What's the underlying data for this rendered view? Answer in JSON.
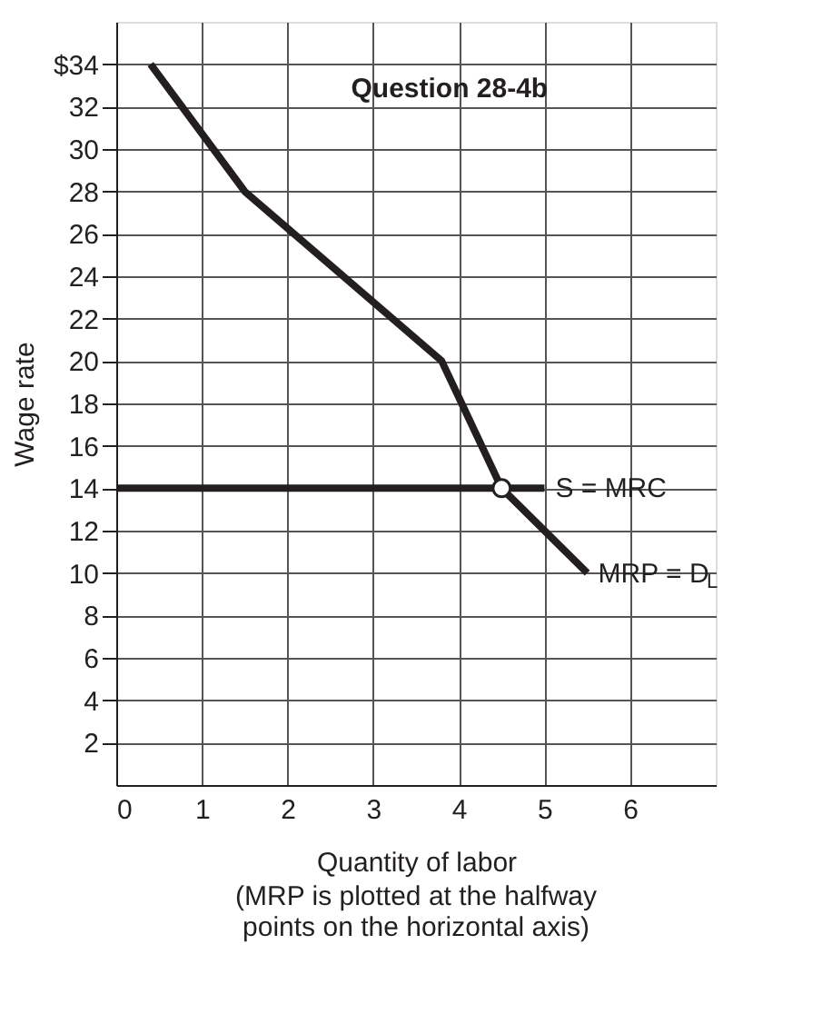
{
  "chart_data": {
    "type": "line",
    "title": "Question 28-4b",
    "xlabel": "Quantity of labor",
    "ylabel": "Wage rate",
    "annotations": [
      "(MRP is plotted at the halfway points on the horizontal axis)"
    ],
    "series": [
      {
        "name": "MRP = D$_{L}$",
        "color": "#231f20",
        "x": [
          0.4,
          1.5,
          3.8,
          4.5,
          5.5
        ],
        "values": [
          34,
          28,
          20,
          14,
          10
        ]
      },
      {
        "name": "S = MRC",
        "color": "#231f20",
        "x": [
          0,
          5
        ],
        "values": [
          14,
          14
        ]
      },
      {
        "type": "scatter",
        "marker": "circle",
        "color": "#ffffff",
        "x": [
          4.5
        ],
        "values": [
          14
        ]
      }
    ],
    "xlim": [
      0,
      7
    ],
    "xticks": [
      0,
      1,
      2,
      3,
      4,
      5,
      6
    ],
    "ylim": [
      0,
      36
    ],
    "yticks": [
      2,
      4,
      6,
      8,
      10,
      12,
      14,
      16,
      18,
      20,
      22,
      24,
      26,
      28,
      30,
      32,
      {
        "value": 34,
        "label": "$34"
      }
    ],
    "tick_labels": "xy",
    "grid": true,
    "marker": "none",
    "line_style": "solid"
  }
}
